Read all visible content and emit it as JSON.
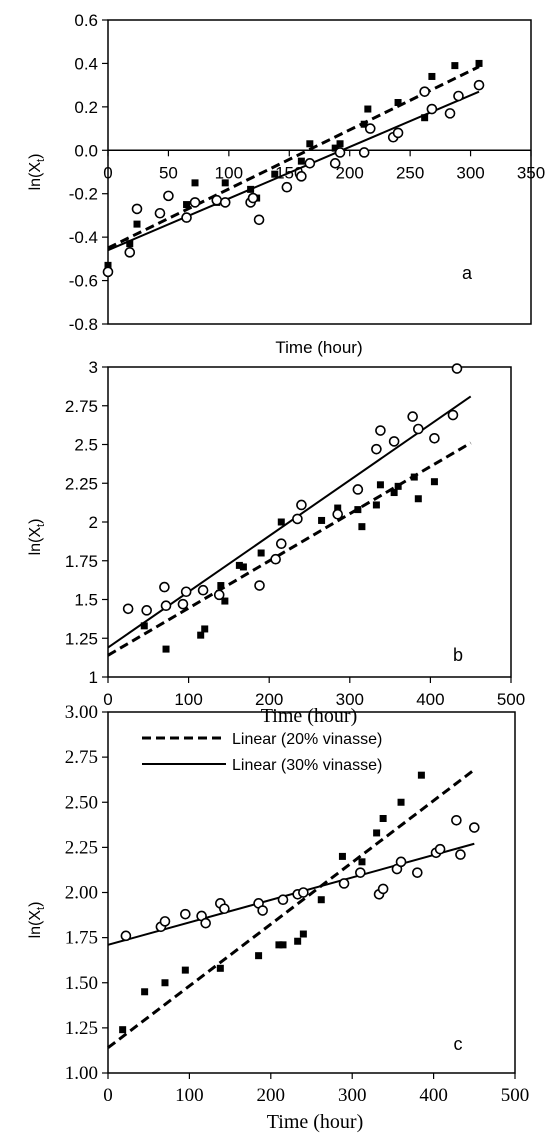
{
  "figure": {
    "panels": [
      {
        "y_axis_label": "ln(X",
        "y_axis_subscript": "t",
        "y_axis_label_close": ")",
        "x_axis_label": "Time (hour)",
        "panel_label": "a"
      },
      {
        "y_axis_label": "ln(X",
        "y_axis_subscript": "t",
        "y_axis_label_close": ")",
        "x_axis_label": "Time (hour)",
        "panel_label": "b"
      },
      {
        "y_axis_label": "ln(X",
        "y_axis_subscript": "t",
        "y_axis_label_close": ")",
        "x_axis_label": "Time (hour)",
        "panel_label": "c",
        "legend": [
          {
            "label": "Linear (20% vinasse)",
            "style": "dashed"
          },
          {
            "label": "Linear (30% vinasse)",
            "style": "solid"
          }
        ]
      }
    ]
  },
  "chart_data": [
    {
      "type": "scatter",
      "title": "",
      "panel_label": "a",
      "xlabel": "Time (hour)",
      "ylabel": "ln(Xt)",
      "xlim": [
        0,
        350
      ],
      "ylim": [
        -0.8,
        0.6
      ],
      "x_ticks": [
        "0",
        "50",
        "100",
        "150",
        "200",
        "250",
        "300",
        "350"
      ],
      "y_ticks": [
        "-0.8",
        "-0.6",
        "-0.4",
        "-0.2",
        "0.0",
        "0.2",
        "0.4",
        "0.6"
      ],
      "x_axis_crosses_at_y": 0,
      "grid": false,
      "marker_color": "#000000",
      "series": [
        {
          "marker": "filled-square",
          "x": [
            0,
            18,
            24,
            43,
            50,
            65,
            72,
            90,
            97,
            118,
            123,
            138,
            160,
            167,
            188,
            192,
            212,
            215,
            240,
            262,
            268,
            287,
            307
          ],
          "y": [
            -0.53,
            -0.43,
            -0.34,
            -0.29,
            -0.21,
            -0.25,
            -0.15,
            -0.24,
            -0.15,
            -0.18,
            -0.22,
            -0.11,
            -0.05,
            0.03,
            0.01,
            0.03,
            0.12,
            0.19,
            0.22,
            0.15,
            0.34,
            0.39,
            0.4
          ]
        },
        {
          "marker": "open-circle",
          "x": [
            0,
            18,
            24,
            43,
            50,
            65,
            72,
            90,
            97,
            118,
            120,
            125,
            148,
            160,
            167,
            188,
            192,
            212,
            217,
            236,
            240,
            262,
            268,
            283,
            290,
            307
          ],
          "y": [
            -0.56,
            -0.47,
            -0.27,
            -0.29,
            -0.21,
            -0.31,
            -0.24,
            -0.23,
            -0.24,
            -0.24,
            -0.22,
            -0.32,
            -0.17,
            -0.12,
            -0.06,
            -0.06,
            -0.01,
            -0.01,
            0.1,
            0.06,
            0.08,
            0.27,
            0.19,
            0.17,
            0.25,
            0.3
          ]
        }
      ],
      "trendlines": [
        {
          "style": "dashed",
          "x": [
            0,
            307
          ],
          "y": [
            -0.45,
            0.385
          ]
        },
        {
          "style": "solid",
          "x": [
            0,
            307
          ],
          "y": [
            -0.46,
            0.27
          ]
        }
      ]
    },
    {
      "type": "scatter",
      "title": "",
      "panel_label": "b",
      "xlabel": "Time (hour)",
      "ylabel": "ln(Xt)",
      "xlim": [
        0,
        500
      ],
      "ylim": [
        1,
        3
      ],
      "x_ticks": [
        "0",
        "100",
        "200",
        "300",
        "400",
        "500"
      ],
      "y_ticks": [
        "1",
        "1.25",
        "1.5",
        "1.75",
        "2",
        "2.25",
        "2.5",
        "2.75",
        "3"
      ],
      "grid": false,
      "marker_color": "#000000",
      "series": [
        {
          "marker": "filled-square",
          "x": [
            45,
            72,
            115,
            120,
            140,
            145,
            163,
            168,
            190,
            215,
            265,
            285,
            310,
            315,
            333,
            338,
            355,
            360,
            380,
            385,
            405
          ],
          "y": [
            1.33,
            1.18,
            1.27,
            1.31,
            1.59,
            1.49,
            1.72,
            1.71,
            1.8,
            2.0,
            2.01,
            2.09,
            2.08,
            1.97,
            2.11,
            2.24,
            2.19,
            2.23,
            2.29,
            2.15,
            2.26
          ]
        },
        {
          "marker": "open-circle",
          "x": [
            25,
            48,
            70,
            72,
            93,
            97,
            118,
            138,
            188,
            208,
            215,
            235,
            240,
            285,
            310,
            333,
            338,
            355,
            378,
            385,
            405,
            428,
            433
          ],
          "y": [
            1.44,
            1.43,
            1.58,
            1.46,
            1.47,
            1.55,
            1.56,
            1.53,
            1.59,
            1.76,
            1.86,
            2.02,
            2.11,
            2.05,
            2.21,
            2.47,
            2.59,
            2.52,
            2.68,
            2.6,
            2.54,
            2.69,
            2.99
          ]
        }
      ],
      "trendlines": [
        {
          "style": "dashed",
          "x": [
            0,
            450
          ],
          "y": [
            1.14,
            2.51
          ]
        },
        {
          "style": "solid",
          "x": [
            0,
            450
          ],
          "y": [
            1.19,
            2.81
          ]
        }
      ]
    },
    {
      "type": "scatter",
      "title": "",
      "panel_label": "c",
      "xlabel": "Time (hour)",
      "ylabel": "ln(Xt)",
      "xlim": [
        0,
        500
      ],
      "ylim": [
        1.0,
        3.0
      ],
      "x_ticks": [
        "0",
        "100",
        "200",
        "300",
        "400",
        "500"
      ],
      "y_ticks": [
        "1.00",
        "1.25",
        "1.50",
        "1.75",
        "2.00",
        "2.25",
        "2.50",
        "2.75",
        "3.00"
      ],
      "grid": false,
      "marker_color": "#000000",
      "legend_position": "top-left",
      "series": [
        {
          "marker": "filled-square",
          "x": [
            18,
            45,
            70,
            95,
            138,
            185,
            210,
            215,
            233,
            240,
            262,
            288,
            312,
            330,
            338,
            360,
            385
          ],
          "y": [
            1.24,
            1.45,
            1.5,
            1.57,
            1.58,
            1.65,
            1.71,
            1.71,
            1.73,
            1.77,
            1.96,
            2.2,
            2.17,
            2.33,
            2.41,
            2.5,
            2.65
          ]
        },
        {
          "marker": "open-circle",
          "x": [
            22,
            65,
            70,
            95,
            115,
            120,
            138,
            143,
            185,
            190,
            215,
            233,
            240,
            290,
            310,
            333,
            338,
            355,
            360,
            380,
            403,
            408,
            428,
            433,
            450
          ],
          "y": [
            1.76,
            1.81,
            1.84,
            1.88,
            1.87,
            1.83,
            1.94,
            1.91,
            1.94,
            1.9,
            1.96,
            1.99,
            2.0,
            2.05,
            2.11,
            1.99,
            2.02,
            2.13,
            2.17,
            2.11,
            2.22,
            2.24,
            2.4,
            2.21,
            2.36
          ]
        }
      ],
      "trendlines": [
        {
          "style": "dashed",
          "name": "Linear (20% vinasse)",
          "x": [
            0,
            450
          ],
          "y": [
            1.14,
            2.68
          ]
        },
        {
          "style": "solid",
          "name": "Linear (30% vinasse)",
          "x": [
            0,
            450
          ],
          "y": [
            1.71,
            2.27
          ]
        }
      ]
    }
  ]
}
